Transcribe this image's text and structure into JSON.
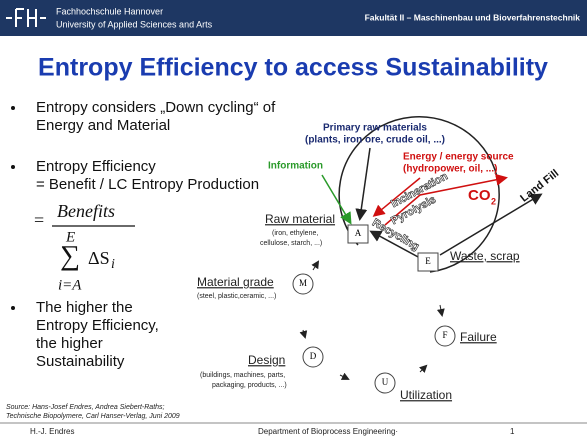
{
  "header": {
    "school": "Fachhochschule Hannover",
    "university": "University of Applied Sciences and Arts",
    "faculty": "Fakultät II – Maschinenbau und Bioverfahrenstechnik"
  },
  "title": "Entropy Efficiency to access Sustainability",
  "bullets": [
    [
      "Entropy considers „Down cycling“ of",
      "Energy and Material"
    ],
    [
      "Entropy Efficiency",
      "= Benefit / LC Entropy Production"
    ],
    [
      "The higher the",
      "Entropy Efficiency,",
      "the higher",
      "Sustainability"
    ]
  ],
  "formula": {
    "equals": "=",
    "numerator": "Benefits",
    "upper": "E",
    "sum": "∑",
    "term": "ΔS",
    "subscript": "i",
    "lower": "i=A"
  },
  "diagram": {
    "primary": [
      "Primary raw materials",
      "(plants, iron ore, crude oil, ...)"
    ],
    "information": "Information",
    "energy": [
      "Energy / energy source",
      "(hydropower, oil, ...)"
    ],
    "incineration": "Incineration",
    "pyrolysis": "Pyrolysis",
    "co": "CO",
    "co_sub": "2",
    "landfill": "Land Fill",
    "recycling": "Recycling",
    "raw_material": {
      "label": "Raw material",
      "detail": [
        "(iron, ethylene,",
        "cellulose, starch, ...)"
      ]
    },
    "material_grade": {
      "label": "Material grade",
      "detail": [
        "(steel, plastic,ceramic, ...)"
      ]
    },
    "design": {
      "label": "Design",
      "detail": [
        "(buildings, machines, parts,",
        "packaging, products, ...)"
      ]
    },
    "waste": "Waste, scrap",
    "failure": "Failure",
    "utilization": "Utilization",
    "nodes": [
      "A",
      "E",
      "M",
      "F",
      "D",
      "U"
    ]
  },
  "source": [
    "Source: Hans-Josef  Endres, Andrea Siebert-Raths;",
    "Technische Biopolymere, Carl Hanser-Verlag, Juni 2009"
  ],
  "footer": {
    "author": "H.-J. Endres",
    "department": "Department of Bioprocess Engineering·",
    "page": "1"
  }
}
